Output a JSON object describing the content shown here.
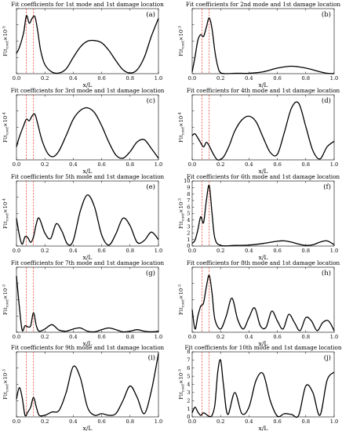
{
  "chart_data": [
    {
      "type": "line",
      "title": "Fit coefficients for 1st mode and 1st damage location",
      "tag": "(a)",
      "xlabel": "x/L",
      "ylabel": "Fit",
      "ylabel_sub": "coef",
      "ylabel_scale": "×10",
      "ylabel_exp": "-5",
      "xlim": [
        0,
        1
      ],
      "ylim": [
        0,
        2
      ],
      "xticks": [
        "0.0",
        "0.2",
        "0.4",
        "0.6",
        "0.8",
        "1.0"
      ],
      "yticks": [],
      "damage_lines": [
        0.07,
        0.12
      ],
      "x": [
        0,
        0.02,
        0.05,
        0.07,
        0.09,
        0.11,
        0.13,
        0.15,
        0.17,
        0.2,
        0.25,
        0.3,
        0.35,
        0.4,
        0.45,
        0.5,
        0.55,
        0.6,
        0.65,
        0.7,
        0.75,
        0.8,
        0.85,
        0.9,
        0.95,
        1.0
      ],
      "y": [
        0.62,
        0.8,
        1.25,
        1.78,
        1.55,
        1.7,
        1.75,
        1.3,
        0.72,
        0.28,
        0.05,
        0.02,
        0.15,
        0.5,
        0.82,
        1.0,
        1.02,
        0.95,
        0.72,
        0.4,
        0.12,
        0.02,
        0.12,
        0.5,
        1.15,
        1.7
      ]
    },
    {
      "type": "line",
      "title": "Fit coefficients for 2nd mode and 1st damage location",
      "tag": "(b)",
      "xlabel": "x/L",
      "ylabel": "Fit",
      "ylabel_sub": "coef",
      "ylabel_scale": "×10",
      "ylabel_exp": "-3",
      "xlim": [
        0,
        1
      ],
      "ylim": [
        0,
        3.5
      ],
      "xticks": [
        "0.0",
        "0.2",
        "0.4",
        "0.6",
        "0.8",
        "1.0"
      ],
      "yticks": [],
      "damage_lines": [
        0.07,
        0.12
      ],
      "x": [
        0,
        0.02,
        0.04,
        0.06,
        0.08,
        0.1,
        0.12,
        0.14,
        0.16,
        0.18,
        0.2,
        0.25,
        0.3,
        0.35,
        0.4,
        0.5,
        0.6,
        0.7,
        0.8,
        0.9,
        0.95,
        1.0
      ],
      "y": [
        0.1,
        0.9,
        1.8,
        2.1,
        2.0,
        2.5,
        3.0,
        2.4,
        1.2,
        0.4,
        0.05,
        0.0,
        0.02,
        0.02,
        0.02,
        0.1,
        0.3,
        0.4,
        0.3,
        0.1,
        0.02,
        0.0
      ]
    },
    {
      "type": "line",
      "title": "Fit coefficients for 3rd mode and 1st damage location",
      "tag": "(c)",
      "xlabel": "x/L",
      "ylabel": "Fit",
      "ylabel_sub": "coef",
      "ylabel_scale": "×10",
      "ylabel_exp": "-4",
      "xlim": [
        0,
        1
      ],
      "ylim": [
        0,
        2
      ],
      "xticks": [
        "0.0",
        "0.2",
        "0.4",
        "0.6",
        "0.8",
        "1.0"
      ],
      "yticks": [],
      "damage_lines": [
        0.07,
        0.12
      ],
      "x": [
        0,
        0.02,
        0.05,
        0.07,
        0.09,
        0.11,
        0.13,
        0.15,
        0.18,
        0.22,
        0.26,
        0.3,
        0.35,
        0.4,
        0.45,
        0.5,
        0.55,
        0.6,
        0.65,
        0.7,
        0.75,
        0.8,
        0.85,
        0.9,
        0.95,
        1.0
      ],
      "y": [
        0.4,
        0.7,
        1.05,
        1.25,
        1.2,
        1.35,
        1.4,
        1.1,
        0.6,
        0.2,
        0.1,
        0.28,
        0.75,
        1.25,
        1.52,
        1.6,
        1.45,
        1.05,
        0.55,
        0.15,
        0.05,
        0.25,
        0.55,
        0.62,
        0.35,
        0.05
      ]
    },
    {
      "type": "line",
      "title": "Fit coefficients for 4th mode and 1st damage location",
      "tag": "(d)",
      "xlabel": "x/L",
      "ylabel": "Fit",
      "ylabel_sub": "coef",
      "ylabel_scale": "×10",
      "ylabel_exp": "-4",
      "xlim": [
        0,
        1
      ],
      "ylim": [
        0,
        3.5
      ],
      "xticks": [
        "0.0",
        "0.2",
        "0.4",
        "0.6",
        "0.8",
        "1.0"
      ],
      "yticks": [],
      "damage_lines": [
        0.07,
        0.12
      ],
      "x": [
        0,
        0.02,
        0.05,
        0.08,
        0.1,
        0.12,
        0.15,
        0.18,
        0.22,
        0.26,
        0.3,
        0.35,
        0.4,
        0.45,
        0.5,
        0.55,
        0.6,
        0.65,
        0.7,
        0.75,
        0.8,
        0.85,
        0.9,
        0.95,
        1.0
      ],
      "y": [
        1.3,
        1.4,
        1.05,
        0.7,
        0.95,
        0.75,
        0.3,
        0.0,
        0.15,
        0.75,
        1.55,
        2.15,
        2.35,
        2.05,
        1.2,
        0.4,
        0.3,
        1.5,
        2.8,
        3.05,
        1.8,
        0.5,
        0.05,
        0.7,
        1.0
      ]
    },
    {
      "type": "line",
      "title": "Fit coefficients for 5th mode and 1st damage location",
      "tag": "(e)",
      "xlabel": "x/L",
      "ylabel": "Fit",
      "ylabel_sub": "coef",
      "ylabel_scale": "×10",
      "ylabel_exp": "-4",
      "xlim": [
        0,
        1
      ],
      "ylim": [
        0,
        3.5
      ],
      "xticks": [
        "0.0",
        "0.2",
        "0.4",
        "0.6",
        "0.8",
        "1.0"
      ],
      "yticks": [],
      "damage_lines": [
        0.07,
        0.12
      ],
      "x": [
        0,
        0.02,
        0.04,
        0.06,
        0.08,
        0.1,
        0.12,
        0.14,
        0.16,
        0.2,
        0.24,
        0.28,
        0.32,
        0.36,
        0.4,
        0.45,
        0.5,
        0.55,
        0.6,
        0.65,
        0.7,
        0.75,
        0.8,
        0.85,
        0.9,
        0.95,
        1.0
      ],
      "y": [
        1.5,
        0.6,
        0.1,
        0.5,
        0.45,
        0.2,
        0.5,
        1.2,
        1.5,
        0.7,
        0.4,
        1.2,
        0.8,
        0.1,
        0.3,
        1.9,
        2.75,
        2.1,
        0.6,
        0.05,
        0.65,
        1.5,
        1.1,
        0.2,
        0.3,
        0.75,
        0.35
      ]
    },
    {
      "type": "line",
      "title": "Fit coefficients for 6th mode and 1st damage location",
      "tag": "(f)",
      "xlabel": "x/L",
      "ylabel": "Fit",
      "ylabel_sub": "coef",
      "ylabel_scale": "×10",
      "ylabel_exp": "-3",
      "xlim": [
        0,
        1
      ],
      "ylim": [
        0,
        10
      ],
      "xticks": [
        "0.0",
        "0.2",
        "0.4",
        "0.6",
        "0.8",
        "1.0"
      ],
      "yticks": [
        "0",
        "1",
        "2",
        "3",
        "4",
        "5",
        "6",
        "7",
        "8",
        "9",
        "10"
      ],
      "damage_lines": [
        0.07,
        0.12
      ],
      "x": [
        0,
        0.02,
        0.04,
        0.06,
        0.08,
        0.1,
        0.12,
        0.14,
        0.16,
        0.2,
        0.3,
        0.4,
        0.5,
        0.6,
        0.65,
        0.7,
        0.75,
        0.8,
        0.85,
        0.9,
        0.95,
        1.0
      ],
      "y": [
        0.4,
        0.9,
        2.5,
        4.5,
        3.6,
        7.0,
        9.3,
        5.0,
        1.2,
        0.1,
        0.1,
        0.15,
        0.4,
        0.75,
        0.8,
        0.6,
        0.3,
        0.1,
        0.2,
        0.6,
        0.8,
        0.2
      ]
    },
    {
      "type": "line",
      "title": "Fit coefficients for 7th mode and 1st damage location",
      "tag": "(g)",
      "xlabel": "x/L",
      "ylabel": "Fit",
      "ylabel_sub": "coef",
      "ylabel_scale": "×10",
      "ylabel_exp": "-3",
      "xlim": [
        0,
        1
      ],
      "ylim": [
        0,
        3
      ],
      "xticks": [
        "0.0",
        "0.2",
        "0.4",
        "0.6",
        "0.8",
        "1.0"
      ],
      "yticks": [],
      "damage_lines": [
        0.07,
        0.12
      ],
      "x": [
        0,
        0.02,
        0.04,
        0.06,
        0.08,
        0.1,
        0.12,
        0.14,
        0.16,
        0.2,
        0.25,
        0.3,
        0.35,
        0.4,
        0.45,
        0.5,
        0.55,
        0.6,
        0.65,
        0.7,
        0.75,
        0.8,
        0.85,
        0.9,
        0.95,
        1.0
      ],
      "y": [
        2.6,
        1.2,
        0.1,
        0.3,
        0.25,
        0.3,
        0.9,
        0.3,
        0.05,
        0.15,
        0.35,
        0.1,
        0.05,
        0.15,
        0.2,
        0.05,
        0.02,
        0.12,
        0.2,
        0.12,
        0.02,
        0.05,
        0.12,
        0.05,
        0.02,
        0.05
      ]
    },
    {
      "type": "line",
      "title": "Fit coefficients for 8th mode and 1st damage location",
      "tag": "(h)",
      "xlabel": "x/L",
      "ylabel": "Fit",
      "ylabel_sub": "coef",
      "ylabel_scale": "×10",
      "ylabel_exp": "-3",
      "xlim": [
        0,
        1
      ],
      "ylim": [
        0,
        2
      ],
      "xticks": [
        "0.0",
        "0.2",
        "0.4",
        "0.6",
        "0.8",
        "1.0"
      ],
      "yticks": [],
      "damage_lines": [
        0.07,
        0.12
      ],
      "x": [
        0,
        0.02,
        0.04,
        0.06,
        0.08,
        0.1,
        0.12,
        0.14,
        0.16,
        0.2,
        0.24,
        0.28,
        0.32,
        0.36,
        0.4,
        0.44,
        0.48,
        0.52,
        0.56,
        0.6,
        0.64,
        0.68,
        0.72,
        0.76,
        0.8,
        0.84,
        0.88,
        0.92,
        0.96,
        1.0
      ],
      "y": [
        0.7,
        0.1,
        0.5,
        0.8,
        0.9,
        1.4,
        1.75,
        1.2,
        0.4,
        0.1,
        0.5,
        1.05,
        0.4,
        0.1,
        0.45,
        0.75,
        0.2,
        0.15,
        0.65,
        0.35,
        0.1,
        0.55,
        0.3,
        0.05,
        0.45,
        0.35,
        0.05,
        0.3,
        0.35,
        0.05
      ]
    },
    {
      "type": "line",
      "title": "Fit coefficients for 9th mode and 1st damage location",
      "tag": "(i)",
      "xlabel": "x/L",
      "ylabel": "Fit",
      "ylabel_sub": "coef",
      "ylabel_scale": "×10",
      "ylabel_exp": "-3",
      "xlim": [
        0,
        1
      ],
      "ylim": [
        0,
        2
      ],
      "xticks": [
        "0.0",
        "0.2",
        "0.4",
        "0.6",
        "0.8",
        "1.0"
      ],
      "yticks": [],
      "damage_lines": [
        0.07,
        0.12
      ],
      "x": [
        0,
        0.02,
        0.04,
        0.06,
        0.08,
        0.1,
        0.12,
        0.14,
        0.16,
        0.2,
        0.25,
        0.3,
        0.35,
        0.4,
        0.45,
        0.5,
        0.55,
        0.6,
        0.65,
        0.7,
        0.75,
        0.8,
        0.85,
        0.9,
        0.95,
        1.0
      ],
      "y": [
        0.55,
        0.9,
        0.6,
        0.05,
        0.15,
        0.3,
        0.6,
        0.3,
        0.05,
        0.05,
        0.15,
        0.2,
        0.75,
        1.55,
        1.2,
        0.3,
        0.05,
        0.1,
        0.05,
        0.1,
        0.5,
        0.95,
        0.6,
        0.1,
        0.8,
        1.95
      ]
    },
    {
      "type": "line",
      "title": "Fit coefficients for 10th mode and 1st damage location",
      "tag": "(j)",
      "xlabel": "x/L",
      "ylabel": "Fit",
      "ylabel_sub": "coef",
      "ylabel_scale": "×10",
      "ylabel_exp": "-3",
      "xlim": [
        0,
        1
      ],
      "ylim": [
        0,
        8
      ],
      "xticks": [
        "0.0",
        "0.2",
        "0.4",
        "0.6",
        "0.8",
        "1.0"
      ],
      "yticks": [
        "0",
        "1",
        "2",
        "3",
        "4",
        "5",
        "6",
        "7",
        "8"
      ],
      "damage_lines": [
        0.07,
        0.12
      ],
      "x": [
        0,
        0.02,
        0.04,
        0.06,
        0.08,
        0.1,
        0.12,
        0.14,
        0.16,
        0.18,
        0.2,
        0.22,
        0.25,
        0.3,
        0.35,
        0.4,
        0.45,
        0.5,
        0.55,
        0.6,
        0.65,
        0.7,
        0.75,
        0.8,
        0.85,
        0.9,
        0.95,
        1.0
      ],
      "y": [
        0.5,
        1.2,
        0.6,
        0.2,
        0.5,
        0.3,
        0.05,
        0.2,
        1.5,
        5.5,
        7.0,
        4.0,
        0.3,
        3.0,
        0.4,
        1.2,
        4.5,
        5.3,
        2.0,
        0.1,
        0.4,
        0.3,
        0.2,
        3.8,
        3.0,
        0.2,
        4.5,
        5.5
      ]
    }
  ]
}
